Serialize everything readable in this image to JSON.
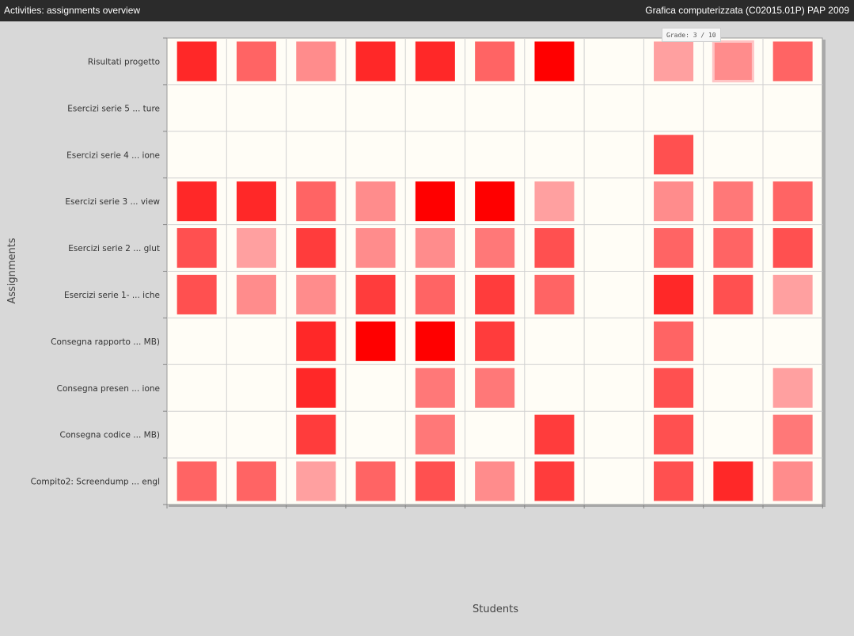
{
  "window": {
    "title_left": "Activities: assignments overview",
    "title_right": "Grafica computerizzata (C02015.01P) PAP 2009"
  },
  "tooltip": {
    "text": "Grade: 3 / 10"
  },
  "colors": {
    "background": "#d8d8d8",
    "plot_background": "#fffdf6",
    "grid": "#d0d0d0",
    "cell_scale": [
      "#ffb5b5",
      "#ff0000"
    ]
  },
  "chart_data": {
    "type": "heatmap",
    "xlabel": "Students",
    "ylabel": "Assignments",
    "x_categories": [
      "",
      "",
      "",
      "",
      "",
      "",
      "",
      "",
      "",
      "",
      ""
    ],
    "y_categories": [
      "Risultati progetto",
      "Esercizi serie 5 ... ture",
      "Esercizi serie 4 ... ione",
      "Esercizi serie 3 ... view",
      "Esercizi serie 2 ... glut",
      "Esercizi serie 1- ... iche",
      "Consegna rapporto ...  MB)",
      "Consegna presen ... ione",
      "Consegna codice ...  MB)",
      "Compito2: Screendump ... engl"
    ],
    "value_range": [
      0,
      10
    ],
    "values": [
      [
        8,
        5,
        3,
        8,
        8,
        5,
        10,
        null,
        2,
        3,
        5
      ],
      [
        null,
        null,
        null,
        null,
        null,
        null,
        null,
        null,
        null,
        null,
        null
      ],
      [
        null,
        null,
        null,
        null,
        null,
        null,
        null,
        null,
        6,
        null,
        null
      ],
      [
        8,
        8,
        5,
        3,
        10,
        10,
        2,
        null,
        3,
        4,
        5
      ],
      [
        6,
        2,
        7,
        3,
        3,
        4,
        6,
        null,
        5,
        5,
        6
      ],
      [
        6,
        3,
        3,
        7,
        5,
        7,
        5,
        null,
        8,
        6,
        2
      ],
      [
        null,
        null,
        8,
        10,
        10,
        7,
        null,
        null,
        5,
        null,
        null
      ],
      [
        null,
        null,
        8,
        null,
        4,
        4,
        null,
        null,
        6,
        null,
        2
      ],
      [
        null,
        null,
        7,
        null,
        4,
        null,
        7,
        null,
        6,
        null,
        4
      ],
      [
        5,
        5,
        2,
        5,
        6,
        3,
        7,
        null,
        6,
        8,
        3
      ]
    ],
    "highlighted_cell": {
      "row": 0,
      "col": 9
    },
    "grid": true,
    "legend": "none"
  }
}
